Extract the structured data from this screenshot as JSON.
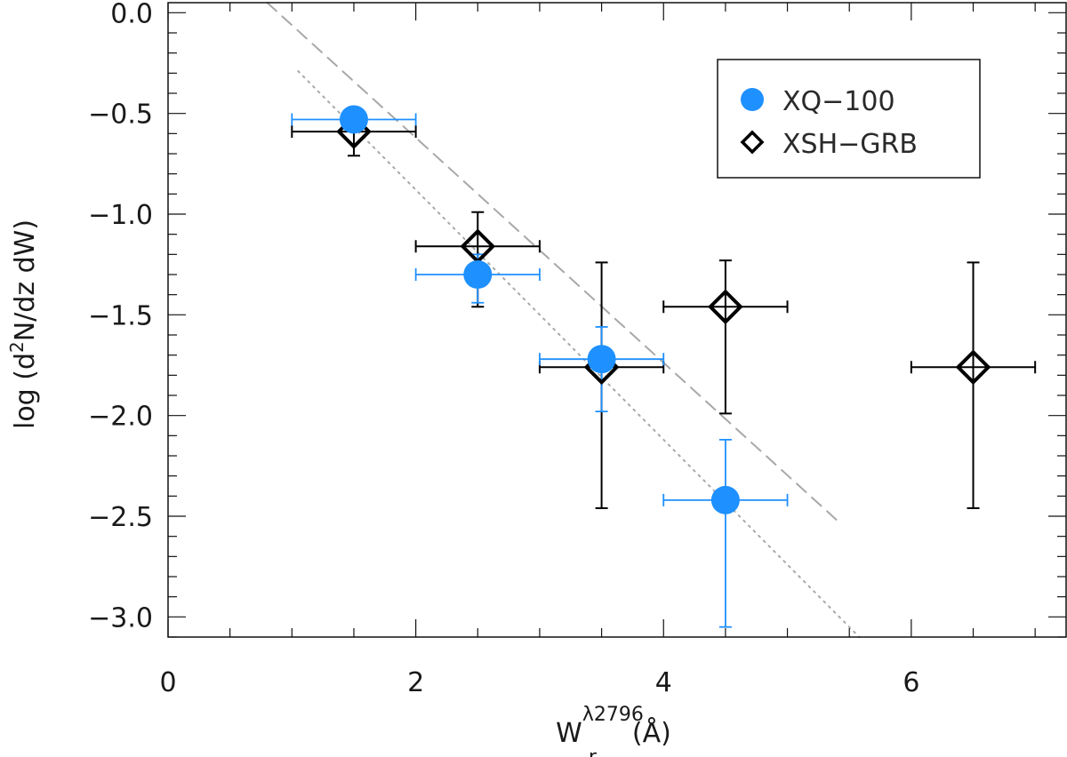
{
  "chart_data": {
    "type": "scatter",
    "title": "",
    "xlabel": {
      "main": "W",
      "sub": "r",
      "sup": "λ2796",
      "unit": "(Å)"
    },
    "ylabel": {
      "prefix": "log  (d",
      "sup": "2",
      "suffix": "N/dz  dW)"
    },
    "xlim": [
      0,
      7.25
    ],
    "ylim": [
      -3.1,
      0.05
    ],
    "x_ticks": [
      0,
      2,
      4,
      6
    ],
    "x_tick_labels": [
      "0",
      "2",
      "4",
      "6"
    ],
    "x_minor_step": 0.5,
    "y_ticks": [
      0.0,
      -0.5,
      -1.0,
      -1.5,
      -2.0,
      -2.5,
      -3.0
    ],
    "y_tick_labels": [
      "0.0",
      "−0.5",
      "−1.0",
      "−1.5",
      "−2.0",
      "−2.5",
      "−3.0"
    ],
    "y_minor_step": 0.1,
    "grid": false,
    "legend_position": "top-right",
    "series": [
      {
        "name": "XQ−100",
        "marker": "filled-circle",
        "color": "#1E90FF",
        "points": [
          {
            "x": 1.5,
            "y": -0.53,
            "xerr": 1.0,
            "yerr_low": 0.05,
            "yerr_high": 0.05
          },
          {
            "x": 2.5,
            "y": -1.3,
            "xerr": 1.0,
            "yerr_low": 0.14,
            "yerr_high": 0.1
          },
          {
            "x": 3.5,
            "y": -1.72,
            "xerr": 1.0,
            "yerr_low": 0.26,
            "yerr_high": 0.16
          },
          {
            "x": 4.5,
            "y": -2.42,
            "xerr": 1.0,
            "yerr_low": 0.63,
            "yerr_high": 0.3
          }
        ]
      },
      {
        "name": "XSH−GRB",
        "marker": "open-diamond",
        "color": "#000000",
        "points": [
          {
            "x": 1.5,
            "y": -0.59,
            "xerr": 1.0,
            "yerr_low": 0.12,
            "yerr_high": 0.05
          },
          {
            "x": 2.5,
            "y": -1.16,
            "xerr": 1.0,
            "yerr_low": 0.3,
            "yerr_high": 0.17
          },
          {
            "x": 3.5,
            "y": -1.76,
            "xerr": 1.0,
            "yerr_low": 0.7,
            "yerr_high": 0.52
          },
          {
            "x": 4.5,
            "y": -1.46,
            "xerr": 1.0,
            "yerr_low": 0.53,
            "yerr_high": 0.23
          },
          {
            "x": 6.5,
            "y": -1.76,
            "xerr": 1.0,
            "yerr_low": 0.7,
            "yerr_high": 0.52
          }
        ]
      }
    ],
    "lines": [
      {
        "style": "dashed",
        "color": "#a8a8a8",
        "from": [
          0.8,
          0.05
        ],
        "to": [
          5.4,
          -2.52
        ]
      },
      {
        "style": "dotted",
        "color": "#a8a8a8",
        "from": [
          1.05,
          -0.29
        ],
        "to": [
          5.58,
          -3.1
        ]
      }
    ]
  }
}
